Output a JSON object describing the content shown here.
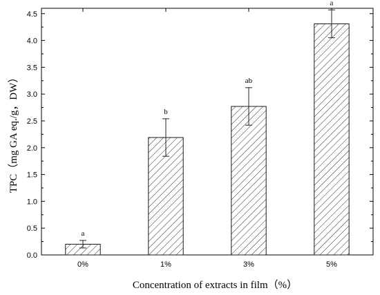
{
  "chart_data": {
    "type": "bar",
    "categories": [
      "0%",
      "1%",
      "3%",
      "5%"
    ],
    "values": [
      0.2,
      2.19,
      2.77,
      4.31
    ],
    "errors": [
      0.07,
      0.35,
      0.35,
      0.26
    ],
    "significance_labels": [
      "a",
      "b",
      "ab",
      "a"
    ],
    "xlabel": "Concentration of extracts in film（%）",
    "ylabel": "TPC（mg GA eq./g，DW）",
    "ylim": [
      0,
      4.6
    ],
    "yticks": [
      "0.0",
      "0.5",
      "1.0",
      "1.5",
      "2.0",
      "2.5",
      "3.0",
      "3.5",
      "4.0",
      "4.5"
    ],
    "grid": false,
    "bar_fill": "hatched",
    "colors": {
      "bar_stroke": "#1a1a1a",
      "axis": "#000000",
      "background": "#ffffff"
    }
  }
}
